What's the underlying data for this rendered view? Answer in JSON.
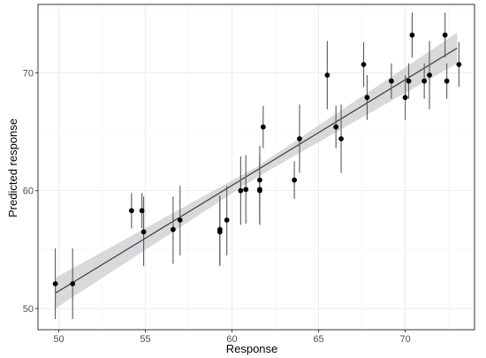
{
  "chart_data": {
    "type": "scatter",
    "title": "",
    "xlabel": "Response",
    "ylabel": "Predicted response",
    "xlim": [
      48.8,
      74.0
    ],
    "ylim": [
      48.2,
      75.8
    ],
    "x_ticks": [
      50,
      55,
      60,
      65,
      70
    ],
    "x_tick_labels": [
      "50",
      "55",
      "60",
      "65",
      "70"
    ],
    "y_ticks": [
      50,
      60,
      70
    ],
    "y_tick_labels": [
      "50",
      "60",
      "70"
    ],
    "grid": true,
    "legend": "none",
    "fit_line": {
      "x": [
        49.8,
        73.0
      ],
      "y": [
        51.3,
        72.1
      ]
    },
    "confidence_band": {
      "x": [
        49.8,
        61.4,
        73.0
      ],
      "lower": [
        50.0,
        61.1,
        70.8
      ],
      "upper": [
        52.6,
        62.0,
        73.4
      ]
    },
    "points": [
      {
        "x": 49.8,
        "y": 52.1,
        "low": 49.1,
        "high": 55.1
      },
      {
        "x": 50.8,
        "y": 52.1,
        "low": 49.1,
        "high": 55.1
      },
      {
        "x": 54.2,
        "y": 58.3,
        "low": 56.8,
        "high": 59.8
      },
      {
        "x": 54.8,
        "y": 58.3,
        "low": 56.8,
        "high": 59.8
      },
      {
        "x": 54.9,
        "y": 56.5,
        "low": 53.6,
        "high": 59.5
      },
      {
        "x": 56.6,
        "y": 56.7,
        "low": 53.8,
        "high": 59.5
      },
      {
        "x": 57.0,
        "y": 57.5,
        "low": 54.5,
        "high": 60.4
      },
      {
        "x": 59.3,
        "y": 56.7,
        "low": 53.7,
        "high": 59.6
      },
      {
        "x": 59.3,
        "y": 56.5,
        "low": 53.6,
        "high": 59.5
      },
      {
        "x": 59.7,
        "y": 57.5,
        "low": 54.5,
        "high": 60.4
      },
      {
        "x": 60.5,
        "y": 60.0,
        "low": 57.1,
        "high": 62.9
      },
      {
        "x": 60.8,
        "y": 60.1,
        "low": 57.2,
        "high": 63.0
      },
      {
        "x": 61.6,
        "y": 60.1,
        "low": 57.2,
        "high": 63.0
      },
      {
        "x": 61.6,
        "y": 60.0,
        "low": 57.1,
        "high": 62.9
      },
      {
        "x": 61.6,
        "y": 60.9,
        "low": 58.1,
        "high": 63.8
      },
      {
        "x": 61.8,
        "y": 65.4,
        "low": 63.6,
        "high": 67.2
      },
      {
        "x": 63.6,
        "y": 60.9,
        "low": 59.3,
        "high": 62.5
      },
      {
        "x": 63.9,
        "y": 64.4,
        "low": 61.5,
        "high": 67.3
      },
      {
        "x": 65.5,
        "y": 69.8,
        "low": 66.9,
        "high": 72.7
      },
      {
        "x": 66.0,
        "y": 65.4,
        "low": 63.6,
        "high": 67.2
      },
      {
        "x": 66.3,
        "y": 64.4,
        "low": 61.5,
        "high": 67.3
      },
      {
        "x": 67.6,
        "y": 70.7,
        "low": 68.8,
        "high": 72.6
      },
      {
        "x": 67.8,
        "y": 67.9,
        "low": 66.0,
        "high": 69.8
      },
      {
        "x": 69.2,
        "y": 69.3,
        "low": 67.8,
        "high": 70.8
      },
      {
        "x": 70.0,
        "y": 67.9,
        "low": 66.0,
        "high": 69.8
      },
      {
        "x": 70.2,
        "y": 69.3,
        "low": 67.8,
        "high": 70.8
      },
      {
        "x": 70.4,
        "y": 73.2,
        "low": 71.3,
        "high": 75.1
      },
      {
        "x": 71.1,
        "y": 69.3,
        "low": 67.8,
        "high": 70.8
      },
      {
        "x": 71.4,
        "y": 69.8,
        "low": 66.9,
        "high": 72.7
      },
      {
        "x": 72.3,
        "y": 73.2,
        "low": 71.3,
        "high": 75.1
      },
      {
        "x": 72.4,
        "y": 69.3,
        "low": 67.8,
        "high": 70.8
      },
      {
        "x": 73.1,
        "y": 70.7,
        "low": 68.8,
        "high": 72.6
      }
    ],
    "colors": {
      "panel_border": "#333333",
      "grid_major": "#ebebeb",
      "grid_minor": "#f5f5f5",
      "band": "#cccccc",
      "fit_line": "#2b3a55",
      "point": "#000000",
      "error_bar": "#595959"
    }
  }
}
